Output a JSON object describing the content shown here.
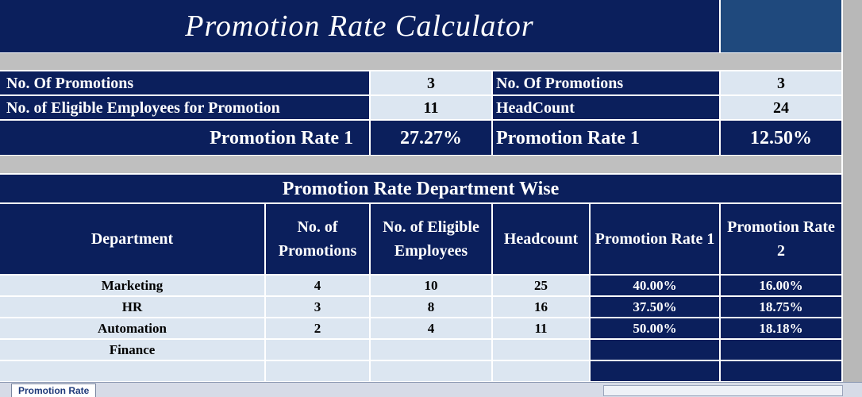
{
  "title": "Promotion Rate Calculator",
  "summary": {
    "left": [
      [
        "No. Of Promotions",
        "3"
      ],
      [
        "No. of Eligible Employees for Promotion",
        "11"
      ],
      [
        "Promotion Rate 1",
        "27.27%"
      ]
    ],
    "right": [
      [
        "No. Of Promotions",
        "3"
      ],
      [
        "HeadCount",
        "24"
      ],
      [
        "Promotion Rate 1",
        "12.50%"
      ]
    ]
  },
  "table": {
    "title": "Promotion Rate Department Wise",
    "headers": [
      "Department",
      "No. of Promotions",
      "No. of Eligible Employees",
      "Headcount",
      "Promotion Rate 1",
      "Promotion Rate 2"
    ],
    "rows": [
      [
        "Marketing",
        "4",
        "10",
        "25",
        "40.00%",
        "16.00%"
      ],
      [
        "HR",
        "3",
        "8",
        "16",
        "37.50%",
        "18.75%"
      ],
      [
        "Automation",
        "2",
        "4",
        "11",
        "50.00%",
        "18.18%"
      ],
      [
        "Finance"
      ]
    ]
  },
  "sheet_tab": "Promotion Rate"
}
